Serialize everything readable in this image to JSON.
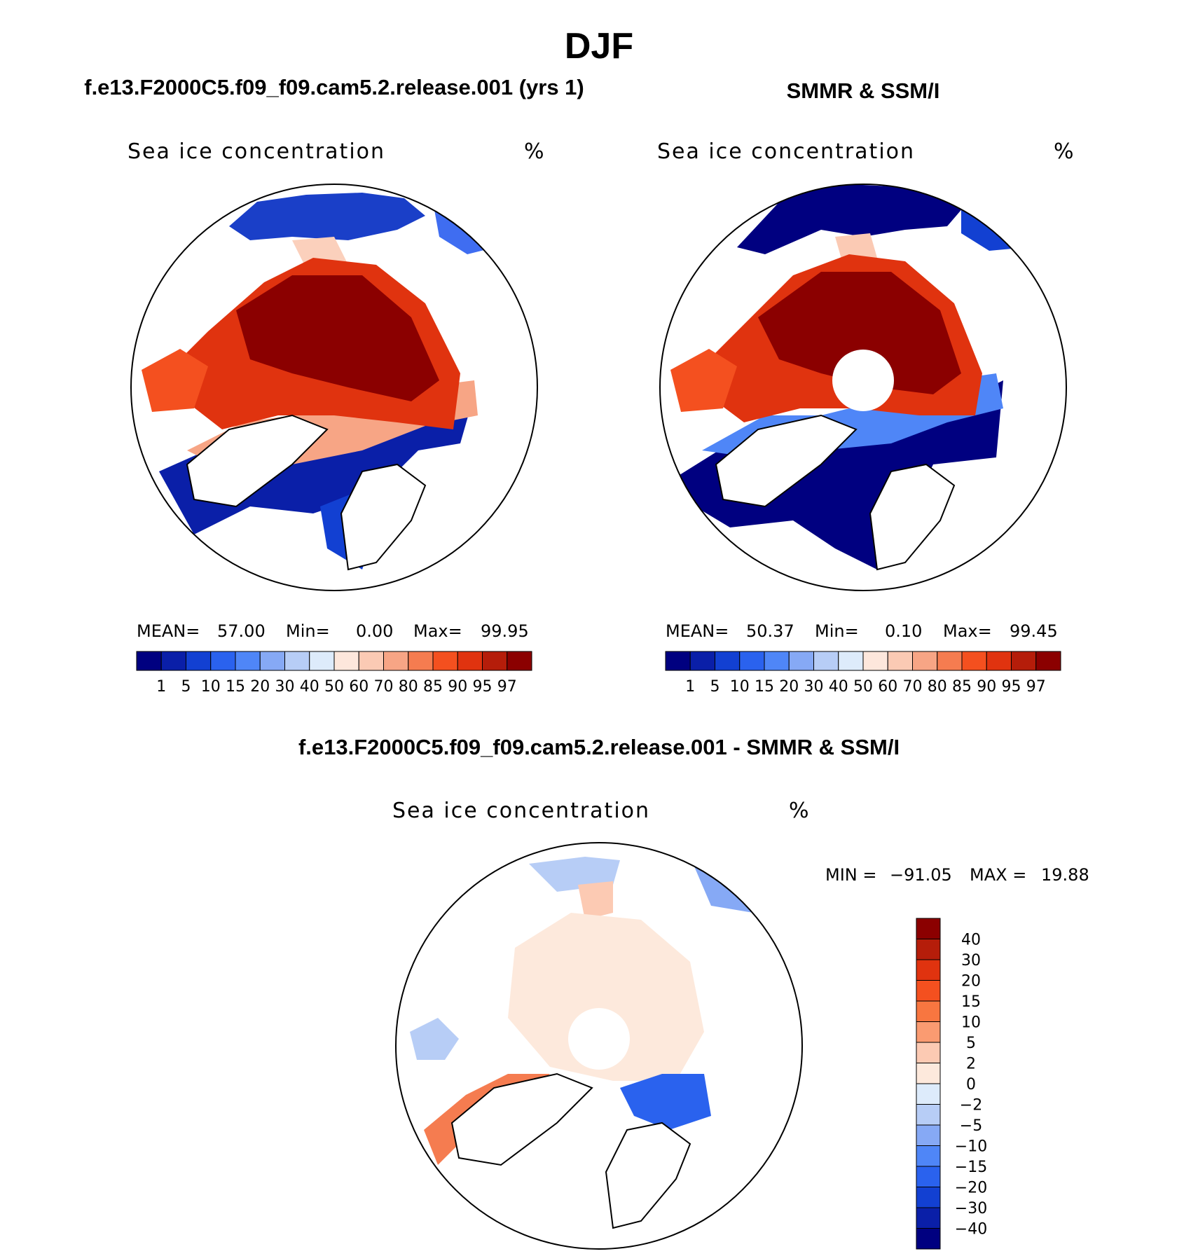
{
  "figure": {
    "title": "DJF",
    "panel_model_title": "f.e13.F2000C5.f09_f09.cam5.2.release.001 (yrs 1)",
    "panel_obs_title": "SMMR & SSM/I",
    "panel_diff_title": "f.e13.F2000C5.f09_f09.cam5.2.release.001 - SMMR & SSM/I"
  },
  "colors": {
    "conc": [
      "#000080",
      "#0a1fa8",
      "#1240d2",
      "#2a62ee",
      "#4f86f7",
      "#86a9f5",
      "#b7cdf6",
      "#ddebfb",
      "#fde7dc",
      "#fbcab4",
      "#f7a585",
      "#f57c50",
      "#f4501f",
      "#e0330f",
      "#b51d0a",
      "#8b0000"
    ],
    "diff": [
      "#000080",
      "#0a1fa8",
      "#1240d2",
      "#2a62ee",
      "#4f86f7",
      "#86a9f5",
      "#b7cdf6",
      "#ddebfb",
      "#fde9dc",
      "#fccab3",
      "#fa9b71",
      "#f87640",
      "#f4501f",
      "#e0330f",
      "#b51d0a",
      "#8b0000"
    ]
  },
  "chart_data": [
    {
      "type": "heatmap",
      "panel": "model",
      "projection": "north polar stereographic",
      "title": "f.e13.F2000C5.f09_f09.cam5.2.release.001 (yrs 1)",
      "field": "Sea ice concentration",
      "units": "%",
      "stats": {
        "mean_label": "MEAN=",
        "mean": "57.00",
        "min_label": "Min=",
        "min": "0.00",
        "max_label": "Max=",
        "max": "99.95"
      },
      "levels": [
        "1",
        "5",
        "10",
        "15",
        "20",
        "30",
        "40",
        "50",
        "60",
        "70",
        "80",
        "85",
        "90",
        "95",
        "97"
      ]
    },
    {
      "type": "heatmap",
      "panel": "observations",
      "projection": "north polar stereographic",
      "title": "SMMR & SSM/I",
      "field": "Sea ice concentration",
      "units": "%",
      "stats": {
        "mean_label": "MEAN=",
        "mean": "50.37",
        "min_label": "Min=",
        "min": "0.10",
        "max_label": "Max=",
        "max": "99.45"
      },
      "levels": [
        "1",
        "5",
        "10",
        "15",
        "20",
        "30",
        "40",
        "50",
        "60",
        "70",
        "80",
        "85",
        "90",
        "95",
        "97"
      ]
    },
    {
      "type": "heatmap",
      "panel": "difference",
      "projection": "north polar stereographic",
      "title": "f.e13.F2000C5.f09_f09.cam5.2.release.001 - SMMR & SSM/I",
      "field": "Sea ice concentration",
      "units": "%",
      "stats": {
        "min_label": "MIN =",
        "min": "−91.05",
        "max_label": "MAX =",
        "max": "19.88"
      },
      "levels": [
        "40",
        "30",
        "20",
        "15",
        "10",
        "5",
        "2",
        "0",
        "−2",
        "−5",
        "−10",
        "−15",
        "−20",
        "−30",
        "−40"
      ]
    }
  ]
}
